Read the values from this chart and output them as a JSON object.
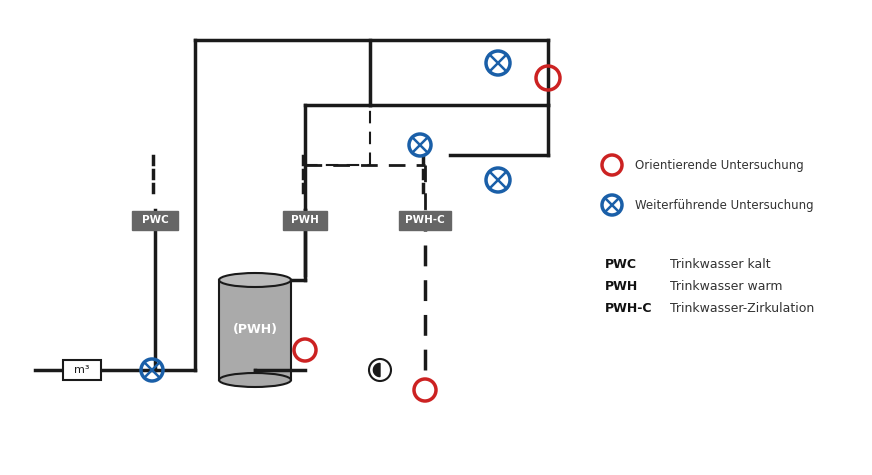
{
  "bg_color": "#ffffff",
  "line_color": "#1a1a1a",
  "red_color": "#cc2222",
  "blue_color": "#1a5fa8",
  "gray_color": "#888888",
  "dark_gray": "#555555",
  "label_bg": "#666666",
  "legend": {
    "orientierende": "Orientierende Untersuchung",
    "weiterfuehrende": "Weiterführende Untersuchung",
    "pwc_label": "PWC",
    "pwc_desc": "Trinkwasser kalt",
    "pwh_label": "PWH",
    "pwh_desc": "Trinkwasser warm",
    "pwhc_label": "PWH-C",
    "pwhc_desc": "Trinkwasser-Zirkulation"
  },
  "labels": {
    "PWC": "PWC",
    "PWH": "PWH",
    "PWHC": "PWH-C",
    "tank": "(PWH)",
    "meter": "m³"
  }
}
